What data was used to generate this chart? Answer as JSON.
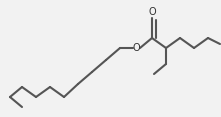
{
  "bg_color": "#f2f2f2",
  "line_color": "#555555",
  "line_width": 1.5,
  "figsize": [
    2.21,
    1.17
  ],
  "dpi": 100,
  "segments": [
    [
      [
        10,
        97
      ],
      [
        22,
        107
      ]
    ],
    [
      [
        10,
        97
      ],
      [
        22,
        87
      ]
    ],
    [
      [
        22,
        87
      ],
      [
        36,
        97
      ]
    ],
    [
      [
        36,
        97
      ],
      [
        50,
        87
      ]
    ],
    [
      [
        50,
        87
      ],
      [
        64,
        97
      ]
    ],
    [
      [
        64,
        97
      ],
      [
        78,
        84
      ]
    ],
    [
      [
        78,
        84
      ],
      [
        92,
        72
      ]
    ],
    [
      [
        92,
        72
      ],
      [
        106,
        60
      ]
    ],
    [
      [
        106,
        60
      ],
      [
        120,
        48
      ]
    ],
    [
      [
        120,
        48
      ],
      [
        133,
        48
      ]
    ],
    [
      [
        140,
        48
      ],
      [
        152,
        38
      ]
    ],
    [
      [
        152,
        38
      ],
      [
        152,
        18
      ]
    ],
    [
      [
        156,
        38
      ],
      [
        156,
        20
      ]
    ],
    [
      [
        152,
        38
      ],
      [
        166,
        48
      ]
    ],
    [
      [
        166,
        48
      ],
      [
        180,
        38
      ]
    ],
    [
      [
        180,
        38
      ],
      [
        194,
        48
      ]
    ],
    [
      [
        194,
        48
      ],
      [
        208,
        38
      ]
    ],
    [
      [
        208,
        38
      ],
      [
        220,
        44
      ]
    ],
    [
      [
        166,
        48
      ],
      [
        166,
        64
      ]
    ],
    [
      [
        166,
        64
      ],
      [
        154,
        74
      ]
    ]
  ],
  "O_ester": [
    136,
    48
  ],
  "O_carbonyl": [
    152,
    12
  ],
  "font_size": 7.0
}
